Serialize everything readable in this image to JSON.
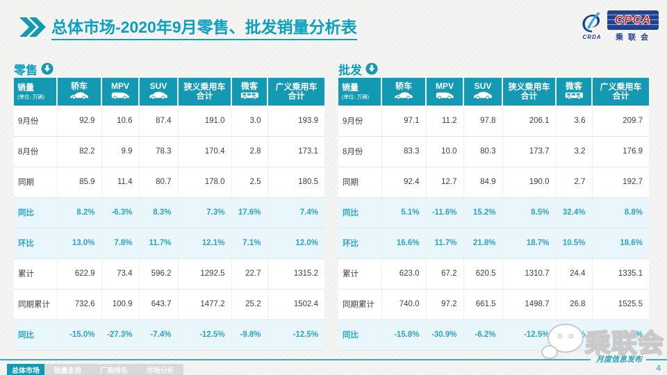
{
  "title": {
    "bold": "总体市场",
    "rest": "-2020年9月零售、批发销量分析表"
  },
  "logo": {
    "crda": "CRDA",
    "cpca": "CPCA",
    "org": "乘联会"
  },
  "colors": {
    "accent_teal": "#1499B3",
    "title_teal": "#0AA0C0",
    "pct_text": "#2AA4C9",
    "pct_bg": "#E9F6FB",
    "footer_line": "#3FA9C3"
  },
  "columns": [
    {
      "key": "sales",
      "label": "销量",
      "sub": "(单位: 万辆)"
    },
    {
      "key": "sedan",
      "label": "轿车",
      "icon": "sedan-icon"
    },
    {
      "key": "mpv",
      "label": "MPV",
      "icon": "mpv-icon"
    },
    {
      "key": "suv",
      "label": "SUV",
      "icon": "suv-icon"
    },
    {
      "key": "narrow-pv-total",
      "label": "狭义乘用车",
      "label2": "合计"
    },
    {
      "key": "microvan",
      "label": "微客",
      "icon": "van-icon"
    },
    {
      "key": "broad-pv-total",
      "label": "广义乘用车",
      "label2": "合计"
    }
  ],
  "tables": [
    {
      "id": "retail",
      "label": "零售",
      "rows": [
        {
          "label": "9月份",
          "type": "data",
          "values": [
            "92.9",
            "10.6",
            "87.4",
            "191.0",
            "3.0",
            "193.9"
          ]
        },
        {
          "label": "8月份",
          "type": "data",
          "values": [
            "82.2",
            "9.9",
            "78.3",
            "170.4",
            "2.8",
            "173.1"
          ]
        },
        {
          "label": "同期",
          "type": "data",
          "values": [
            "85.9",
            "11.4",
            "80.7",
            "178.0",
            "2.5",
            "180.5"
          ]
        },
        {
          "label": "同比",
          "type": "pct",
          "values": [
            "8.2%",
            "-6.3%",
            "8.3%",
            "7.3%",
            "17.6%",
            "7.4%"
          ]
        },
        {
          "label": "环比",
          "type": "pct",
          "values": [
            "13.0%",
            "7.8%",
            "11.7%",
            "12.1%",
            "7.1%",
            "12.0%"
          ]
        },
        {
          "label": "累计",
          "type": "data",
          "values": [
            "622.9",
            "73.4",
            "596.2",
            "1292.5",
            "22.7",
            "1315.2"
          ]
        },
        {
          "label": "同期累计",
          "type": "data",
          "values": [
            "732.6",
            "100.9",
            "643.7",
            "1477.2",
            "25.2",
            "1502.4"
          ]
        },
        {
          "label": "同比",
          "type": "pct",
          "values": [
            "-15.0%",
            "-27.3%",
            "-7.4%",
            "-12.5%",
            "-9.8%",
            "-12.5%"
          ]
        }
      ]
    },
    {
      "id": "wholesale",
      "label": "批发",
      "rows": [
        {
          "label": "9月份",
          "type": "data",
          "values": [
            "97.1",
            "11.2",
            "97.8",
            "206.1",
            "3.6",
            "209.7"
          ]
        },
        {
          "label": "8月份",
          "type": "data",
          "values": [
            "83.3",
            "10.0",
            "80.3",
            "173.7",
            "3.2",
            "176.9"
          ]
        },
        {
          "label": "同期",
          "type": "data",
          "values": [
            "92.4",
            "12.7",
            "84.9",
            "190.0",
            "2.7",
            "192.7"
          ]
        },
        {
          "label": "同比",
          "type": "pct",
          "values": [
            "5.1%",
            "-11.6%",
            "15.2%",
            "8.5%",
            "32.4%",
            "8.8%"
          ]
        },
        {
          "label": "环比",
          "type": "pct",
          "values": [
            "16.6%",
            "11.7%",
            "21.8%",
            "18.7%",
            "10.5%",
            "18.6%"
          ]
        },
        {
          "label": "累计",
          "type": "data",
          "values": [
            "623.0",
            "67.2",
            "620.5",
            "1310.7",
            "24.4",
            "1335.1"
          ]
        },
        {
          "label": "同期累计",
          "type": "data",
          "values": [
            "740.0",
            "97.2",
            "661.5",
            "1498.7",
            "26.8",
            "1525.5"
          ]
        },
        {
          "label": "同比",
          "type": "pct",
          "values": [
            "-15.8%",
            "-30.9%",
            "-6.2%",
            "-12.5%",
            "-9.1%",
            "-12.5%"
          ]
        }
      ]
    }
  ],
  "watermark": "CPCA乘联会",
  "wechat_badge": {
    "text": "乘联会"
  },
  "footer": {
    "tabs": [
      {
        "key": "overall-market",
        "label": "总体市场",
        "active": true
      },
      {
        "key": "sales-trend",
        "label": "销量走势",
        "active": false
      },
      {
        "key": "oem-ranking",
        "label": "厂商排名",
        "active": false
      },
      {
        "key": "market-analysis",
        "label": "市场分析",
        "active": false
      }
    ],
    "tagline": "月度信息发布",
    "page": "4"
  }
}
